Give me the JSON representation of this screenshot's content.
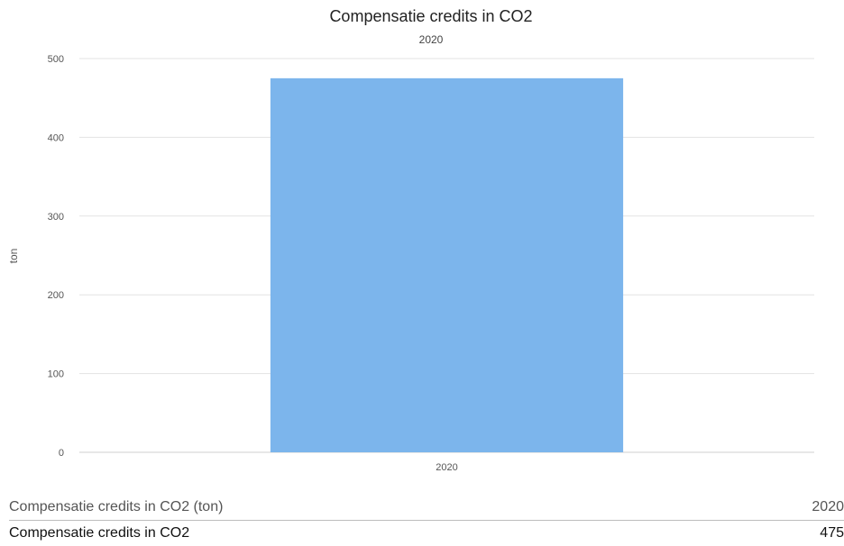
{
  "chart_data": {
    "type": "bar",
    "title": "Compensatie credits in CO2",
    "subtitle": "2020",
    "xlabel": "",
    "ylabel": "ton",
    "categories": [
      "2020"
    ],
    "series": [
      {
        "name": "Compensatie credits in CO2",
        "values": [
          475
        ],
        "color": "#7cb5ec"
      }
    ],
    "ylim": [
      0,
      500
    ],
    "yticks": [
      0,
      100,
      200,
      300,
      400,
      500
    ],
    "grid": true,
    "legend": "none"
  },
  "table": {
    "header_label": "Compensatie credits in CO2 (ton)",
    "header_year": "2020",
    "row_label": "Compensatie credits in CO2",
    "row_value": "475"
  }
}
